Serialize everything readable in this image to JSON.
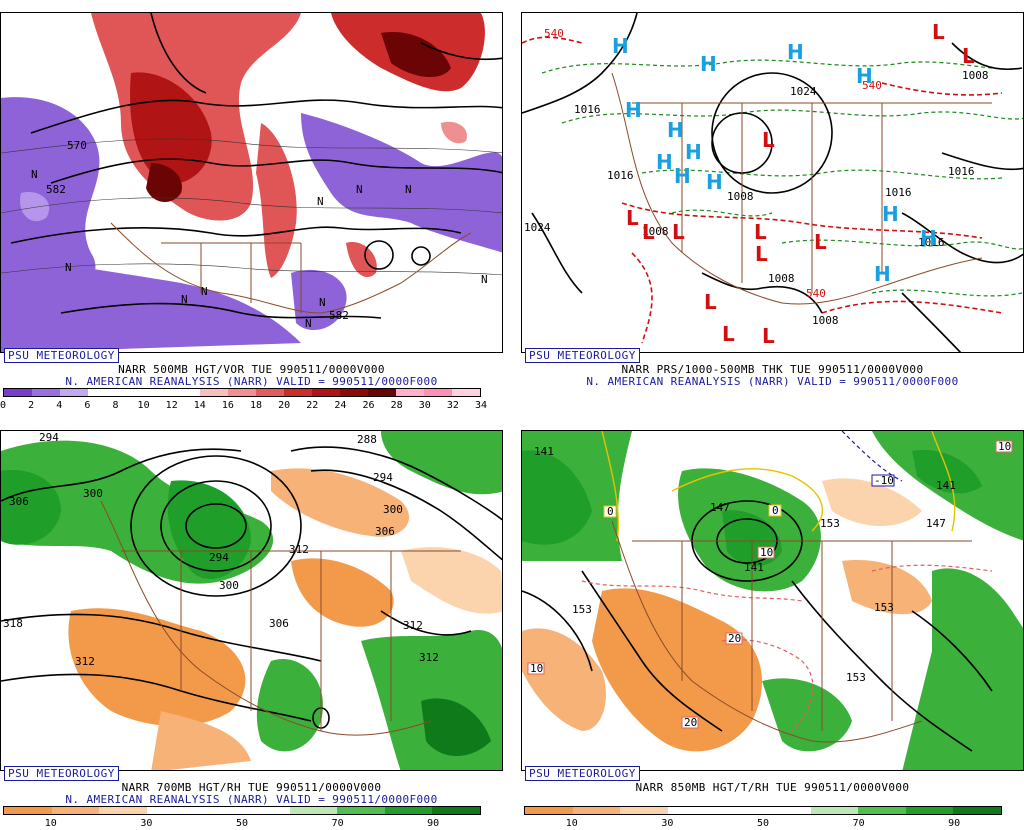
{
  "panels": {
    "p1": {
      "badge": "PSU METEOROLOGY",
      "title_line1": "NARR 500MB HGT/VOR TUE 990511/0000V000",
      "title_line2": "N. AMERICAN REANALYSIS (NARR) VALID = 990511/0000F000",
      "colorbar": [
        "#7a3ccc",
        "#9a6ee0",
        "#c2a8ee",
        "#ffffff",
        "#ffffff",
        "#ffffff",
        "#ffffff",
        "#f6c0c0",
        "#ef8f8f",
        "#e25a5a",
        "#cc2c2c",
        "#b21414",
        "#8c0a0a",
        "#6b0505",
        "#ffb0c8",
        "#ff8fb8",
        "#ffd0e0"
      ],
      "tick_labels": [
        "0",
        "2",
        "4",
        "6",
        "8",
        "10",
        "12",
        "14",
        "16",
        "18",
        "20",
        "22",
        "24",
        "26",
        "28",
        "30",
        "32",
        "34"
      ],
      "contour_labels": [
        "570",
        "582",
        "582"
      ],
      "vort_markers": [
        "N",
        "N",
        "N",
        "N",
        "N",
        "N",
        "N",
        "N",
        "N",
        "N"
      ]
    },
    "p2": {
      "badge": "PSU METEOROLOGY",
      "title_line1": "NARR PRS/1000-500MB THK TUE 990511/0000V000",
      "title_line2": "N. AMERICAN REANALYSIS (NARR) VALID = 990511/0000F000",
      "contour_labels": [
        "540",
        "1016",
        "1024",
        "1024",
        "1016",
        "1008",
        "1016",
        "1016",
        "1008",
        "1008",
        "540",
        "540",
        "1008",
        "1008",
        "1016"
      ],
      "high_label": "H",
      "low_label": "L"
    },
    "p3": {
      "badge": "PSU METEOROLOGY",
      "title_line1": "NARR 700MB HGT/RH TUE 990511/0000V000",
      "title_line2": "N. AMERICAN REANALYSIS (NARR) VALID = 990511/0000F000",
      "colorbar": [
        "#f29a4a",
        "#f6b277",
        "#fbd3ad",
        "#ffffff",
        "#ffffff",
        "#ffffff",
        "#bfe8b7",
        "#4fbf4f",
        "#1f9e2a",
        "#0f7a1a"
      ],
      "tick_labels": [
        "10",
        "30",
        "50",
        "70",
        "90"
      ],
      "contour_labels": [
        "294",
        "288",
        "306",
        "300",
        "294",
        "300",
        "306",
        "312",
        "294",
        "300",
        "306",
        "318",
        "312",
        "312",
        "312"
      ]
    },
    "p4": {
      "badge": "PSU METEOROLOGY",
      "title_line1": "NARR 850MB HGT/T/RH TUE 990511/0000V000",
      "colorbar": [
        "#f29a4a",
        "#f6b277",
        "#fbd3ad",
        "#ffffff",
        "#ffffff",
        "#ffffff",
        "#bfe8b7",
        "#4fbf4f",
        "#1f9e2a",
        "#0f7a1a"
      ],
      "tick_labels": [
        "10",
        "30",
        "50",
        "70",
        "90"
      ],
      "contour_labels": [
        "141",
        "147",
        "141",
        "153",
        "153",
        "153",
        "153",
        "141",
        "147"
      ],
      "temp_labels": [
        "0",
        "0",
        "10",
        "20",
        "20",
        "10",
        "-10",
        "10"
      ]
    }
  }
}
